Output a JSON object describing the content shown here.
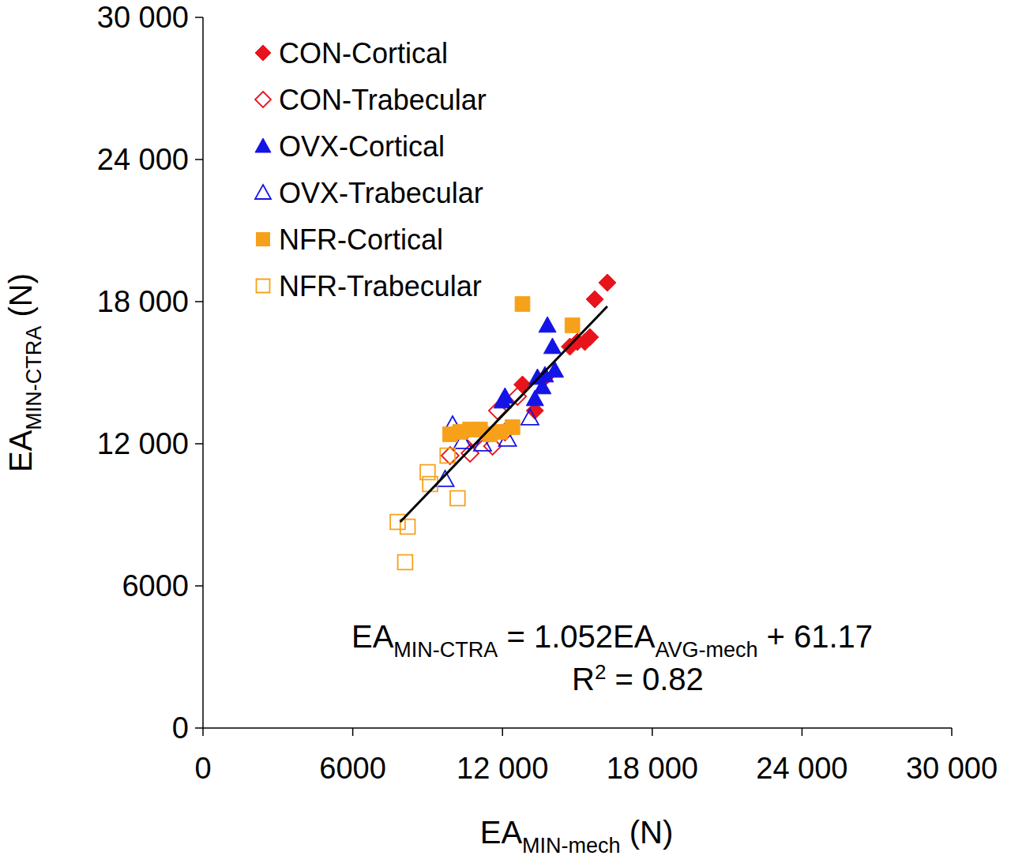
{
  "chart_data": {
    "type": "scatter",
    "x_label": [
      "EA",
      "MIN-mech",
      " (N)"
    ],
    "y_label": [
      "EA",
      "MIN-CTRA",
      " (N)"
    ],
    "equation": [
      "EA",
      "MIN-CTRA",
      " = 1.052EA",
      "AVG-mech",
      " + 61.17"
    ],
    "r_squared": [
      "R",
      "2",
      " = 0.82"
    ],
    "xlim": [
      0,
      30000
    ],
    "ylim": [
      0,
      30000
    ],
    "xticks": [
      0,
      6000,
      {
        "value": 12000,
        "label": "12 000"
      },
      {
        "value": 18000,
        "label": "18 000"
      },
      {
        "value": 24000,
        "label": "24 000"
      },
      {
        "value": 30000,
        "label": "30 000"
      }
    ],
    "yticks": [
      0,
      6000,
      {
        "value": 12000,
        "label": "12 000"
      },
      {
        "value": 18000,
        "label": "18 000"
      },
      {
        "value": 24000,
        "label": "24 000"
      },
      {
        "value": 30000,
        "label": "30 000"
      }
    ],
    "grid": false,
    "legend": "upper left",
    "series": [
      {
        "name": "CON-Cortical",
        "color": "#e8141c",
        "marker": "diamond",
        "x": [
          16200,
          15700,
          15500,
          15300,
          15000,
          14700,
          12800,
          13300,
          13700
        ],
        "values": [
          18800,
          18100,
          16500,
          16300,
          16300,
          16100,
          14500,
          13400,
          14800
        ]
      },
      {
        "name": "CON-Trabecular",
        "color": "#e8141c",
        "marker": "open-diamond",
        "x": [
          11800,
          9900,
          10700,
          11600,
          12100,
          10900,
          12600
        ],
        "values": [
          13400,
          11500,
          11600,
          11900,
          12500,
          12200,
          14000
        ]
      },
      {
        "name": "OVX-Cortical",
        "color": "#1414e6",
        "marker": "triangle",
        "x": [
          13800,
          14000,
          14100,
          13700,
          13400,
          13300,
          12100,
          12000,
          13600
        ],
        "values": [
          17000,
          16100,
          15100,
          14900,
          14800,
          13900,
          14000,
          13800,
          14400
        ]
      },
      {
        "name": "OVX-Trabecular",
        "color": "#1414e6",
        "marker": "open-triangle",
        "x": [
          9700,
          10000,
          11200,
          12200,
          13100,
          10400
        ],
        "values": [
          10500,
          12800,
          12000,
          12200,
          13100,
          12100
        ]
      },
      {
        "name": "NFR-Cortical",
        "color": "#f7a11a",
        "marker": "square",
        "x": [
          12800,
          14800,
          9900,
          10300,
          10700,
          11500,
          11900,
          12400,
          11100
        ],
        "values": [
          17900,
          17000,
          12400,
          12500,
          12600,
          12400,
          12500,
          12700,
          12600
        ]
      },
      {
        "name": "NFR-Trabecular",
        "color": "#f7a11a",
        "marker": "open-square",
        "x": [
          7800,
          8200,
          8100,
          9000,
          9100,
          10200,
          9800
        ],
        "values": [
          8700,
          8500,
          7000,
          10800,
          10300,
          9700,
          11500
        ]
      }
    ],
    "trend_line": {
      "color": "#000000",
      "x": [
        7900,
        16200
      ],
      "values": [
        8700,
        17800
      ]
    }
  }
}
